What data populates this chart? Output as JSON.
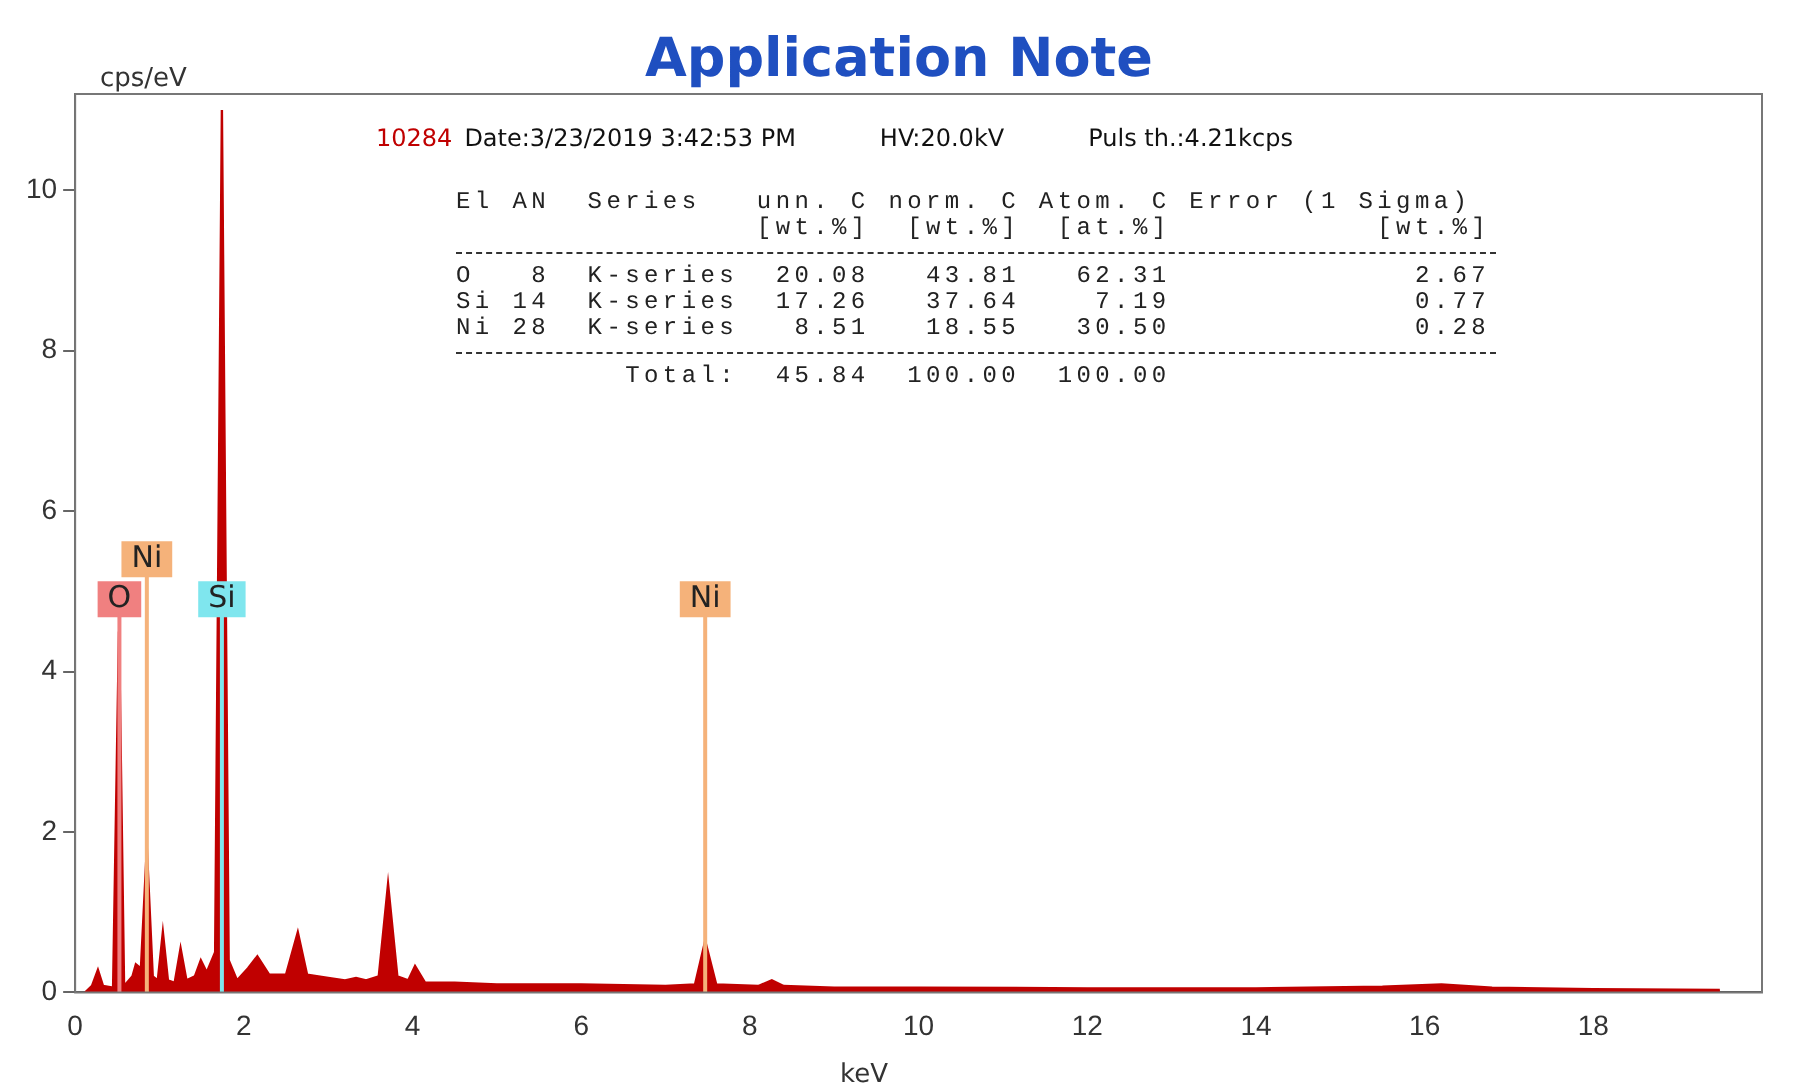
{
  "chart_data": {
    "type": "area",
    "title": "Application Note",
    "xlabel": "keV",
    "ylabel": "cps/eV",
    "xlim": [
      0,
      20
    ],
    "xticks": [
      0,
      2,
      4,
      6,
      8,
      10,
      12,
      14,
      16,
      18
    ],
    "ylim": [
      0,
      11.2
    ],
    "yticks": [
      0,
      2,
      4,
      6,
      8,
      10
    ],
    "grid": false,
    "legend": false,
    "marker": "none",
    "series": [
      {
        "color": "#c00000",
        "x": [
          0.12,
          0.2,
          0.27,
          0.33,
          0.45,
          0.52,
          0.58,
          0.68,
          0.72,
          0.78,
          0.85,
          0.92,
          0.98,
          1.04,
          1.1,
          1.18,
          1.25,
          1.32,
          1.42,
          1.49,
          1.56,
          1.66,
          1.74,
          1.82,
          1.92,
          2.05,
          2.16,
          2.3,
          2.5,
          2.64,
          2.75,
          3.0,
          3.2,
          3.33,
          3.45,
          3.6,
          3.71,
          3.82,
          3.95,
          4.03,
          4.15,
          4.5,
          5,
          6,
          7,
          7.35,
          7.47,
          7.6,
          8.1,
          8.26,
          8.4,
          9,
          10,
          12,
          14,
          15.5,
          16.2,
          16.8,
          18,
          19.5
        ],
        "values": [
          0,
          0.08,
          0.28,
          0.08,
          0.06,
          4.5,
          0.08,
          0.2,
          0.35,
          0.3,
          1.8,
          0.2,
          0.15,
          0.75,
          0.15,
          0.12,
          0.55,
          0.15,
          0.2,
          0.4,
          0.25,
          0.5,
          11,
          0.4,
          0.15,
          0.3,
          0.45,
          0.22,
          0.22,
          0.75,
          0.22,
          0.18,
          0.15,
          0.18,
          0.15,
          0.2,
          1.35,
          0.2,
          0.15,
          0.33,
          0.12,
          0.12,
          0.1,
          0.1,
          0.08,
          0.1,
          0.64,
          0.1,
          0.08,
          0.15,
          0.08,
          0.06,
          0.06,
          0.05,
          0.05,
          0.07,
          0.1,
          0.06,
          0.04,
          0.03
        ]
      }
    ],
    "ref_lines": [
      {
        "axis": "x",
        "value": 0.525,
        "label": "O",
        "color": "#f08080"
      },
      {
        "axis": "x",
        "value": 0.85,
        "label": "Ni",
        "color": "#f5b27a"
      },
      {
        "axis": "x",
        "value": 1.74,
        "label": "Si",
        "color": "#7fe6ee"
      },
      {
        "axis": "x",
        "value": 7.47,
        "label": "Ni",
        "color": "#f5b27a"
      }
    ],
    "annotations": [
      "10284",
      "Date:3/23/2019 3:42:53 PM",
      "HV:20.0kV",
      "Puls th.:4.21kcps",
      "El AN  Series   unn. C norm. C Atom. C Error (1 Sigma)",
      "                [wt.%]  [wt.%]  [at.%]           [wt.%]",
      "O   8  K-series  20.08   43.81   62.31             2.67",
      "Si 14  K-series  17.26   37.64    7.19             0.77",
      "Ni 28  K-series   8.51   18.55   30.50             0.28",
      "         Total:  45.84  100.00  100.00"
    ]
  }
}
